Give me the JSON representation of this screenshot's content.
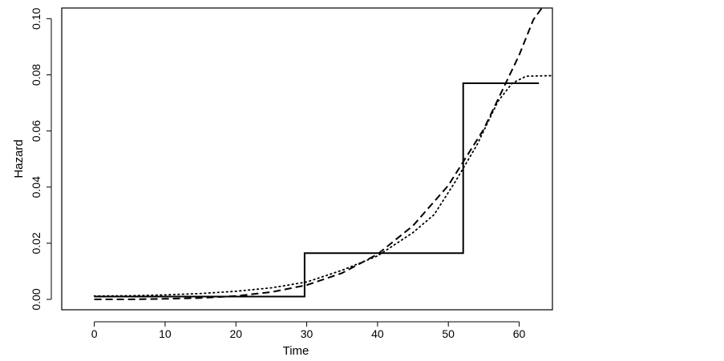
{
  "chart_data": {
    "type": "line",
    "xlabel": "Time",
    "ylabel": "Hazard",
    "xlim": [
      -4.6,
      64.7
    ],
    "ylim": [
      -0.0037,
      0.1038
    ],
    "x_ticks": [
      "0",
      "10",
      "20",
      "30",
      "40",
      "50",
      "60"
    ],
    "y_ticks": [
      "0.00",
      "0.02",
      "0.04",
      "0.06",
      "0.08",
      "0.10"
    ],
    "grid": false,
    "legend": "none",
    "series": [
      {
        "style": "solid",
        "points": [
          [
            0,
            0.001
          ],
          [
            29.7,
            0.001
          ],
          [
            29.7,
            0.0165
          ],
          [
            52.1,
            0.0165
          ],
          [
            52.1,
            0.077
          ],
          [
            62.8,
            0.077
          ]
        ]
      },
      {
        "style": "dashed",
        "points": [
          [
            0,
            0.0
          ],
          [
            5,
            0.0
          ],
          [
            10,
            0.0002
          ],
          [
            15,
            0.0005
          ],
          [
            20,
            0.0012
          ],
          [
            25,
            0.0026
          ],
          [
            30,
            0.0051
          ],
          [
            35,
            0.0094
          ],
          [
            40,
            0.0161
          ],
          [
            45,
            0.0262
          ],
          [
            50,
            0.0406
          ],
          [
            55,
            0.0606
          ],
          [
            60,
            0.087
          ],
          [
            62,
            0.0996
          ],
          [
            63.2,
            0.1038
          ]
        ]
      },
      {
        "style": "dotted",
        "points": [
          [
            0,
            0.0012
          ],
          [
            5,
            0.0013
          ],
          [
            10,
            0.0016
          ],
          [
            15,
            0.0021
          ],
          [
            20,
            0.0029
          ],
          [
            25,
            0.0041
          ],
          [
            30,
            0.0062
          ],
          [
            35,
            0.0104
          ],
          [
            40,
            0.0155
          ],
          [
            45,
            0.0238
          ],
          [
            48,
            0.0302
          ],
          [
            51,
            0.042
          ],
          [
            54,
            0.0548
          ],
          [
            57,
            0.0705
          ],
          [
            59,
            0.077
          ],
          [
            61,
            0.0795
          ],
          [
            64.7,
            0.0797
          ]
        ]
      }
    ]
  }
}
